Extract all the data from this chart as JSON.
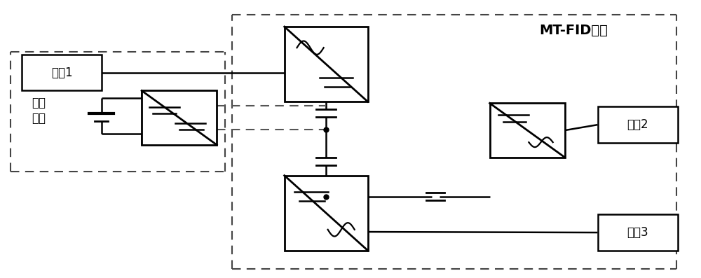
{
  "title": "MT-FID装置",
  "label_feeder1": "馈线1",
  "label_feeder2": "馈线2",
  "label_feeder3": "馈线3",
  "label_storage_1": "储能",
  "label_storage_2": "装置",
  "bg_color": "#ffffff",
  "line_color": "#000000",
  "fig_width": 10.0,
  "fig_height": 3.97
}
